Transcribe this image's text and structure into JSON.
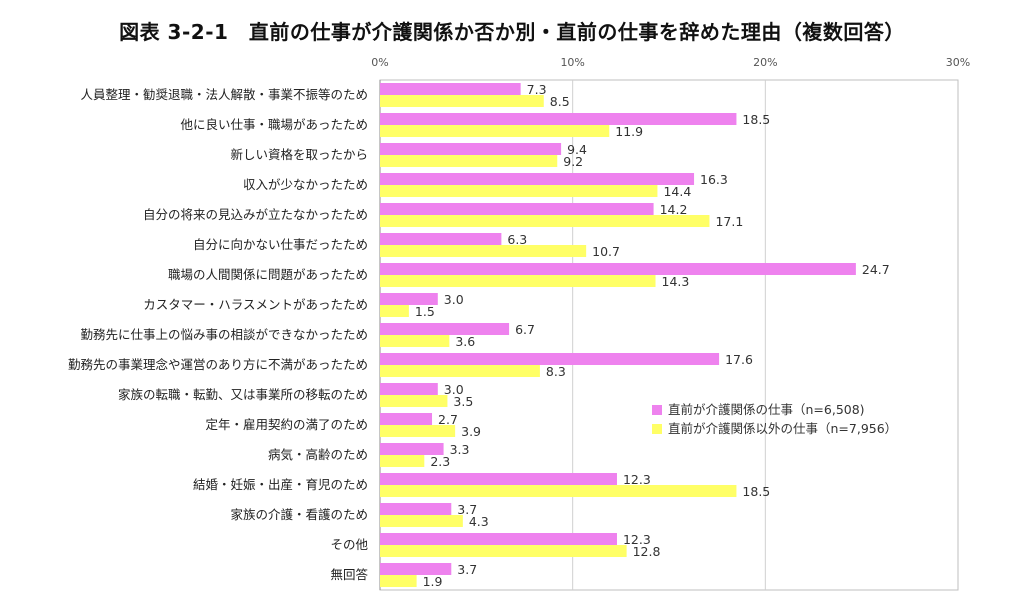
{
  "chart_data": {
    "type": "bar",
    "orientation": "horizontal",
    "title": "図表 3-2-1　直前の仕事が介護関係か否か別・直前の仕事を辞めた理由（複数回答）",
    "xlim": [
      0,
      30
    ],
    "x_ticks": [
      "0%",
      "10%",
      "20%",
      "30%"
    ],
    "grid": true,
    "legend_position": "right",
    "categories": [
      "人員整理・勧奨退職・法人解散・事業不振等のため",
      "他に良い仕事・職場があったため",
      "新しい資格を取ったから",
      "収入が少なかったため",
      "自分の将来の見込みが立たなかったため",
      "自分に向かない仕事だったため",
      "職場の人間関係に問題があったため",
      "カスタマー・ハラスメントがあったため",
      "勤務先に仕事上の悩み事の相談ができなかったため",
      "勤務先の事業理念や運営のあり方に不満があったため",
      "家族の転職・転勤、又は事業所の移転のため",
      "定年・雇用契約の満了のため",
      "病気・高齢のため",
      "結婚・妊娠・出産・育児のため",
      "家族の介護・看護のため",
      "その他",
      "無回答"
    ],
    "series": [
      {
        "name": "直前が介護関係の仕事（n=6,508)",
        "color": "#ee82ee",
        "values": [
          7.3,
          18.5,
          9.4,
          16.3,
          14.2,
          6.3,
          24.7,
          3.0,
          6.7,
          17.6,
          3.0,
          2.7,
          3.3,
          12.3,
          3.7,
          12.3,
          3.7
        ]
      },
      {
        "name": "直前が介護関係以外の仕事（n=7,956）",
        "color": "#ffff66",
        "values": [
          8.5,
          11.9,
          9.2,
          14.4,
          17.1,
          10.7,
          14.3,
          1.5,
          3.6,
          8.3,
          3.5,
          3.9,
          2.3,
          18.5,
          4.3,
          12.8,
          1.9
        ]
      }
    ]
  }
}
